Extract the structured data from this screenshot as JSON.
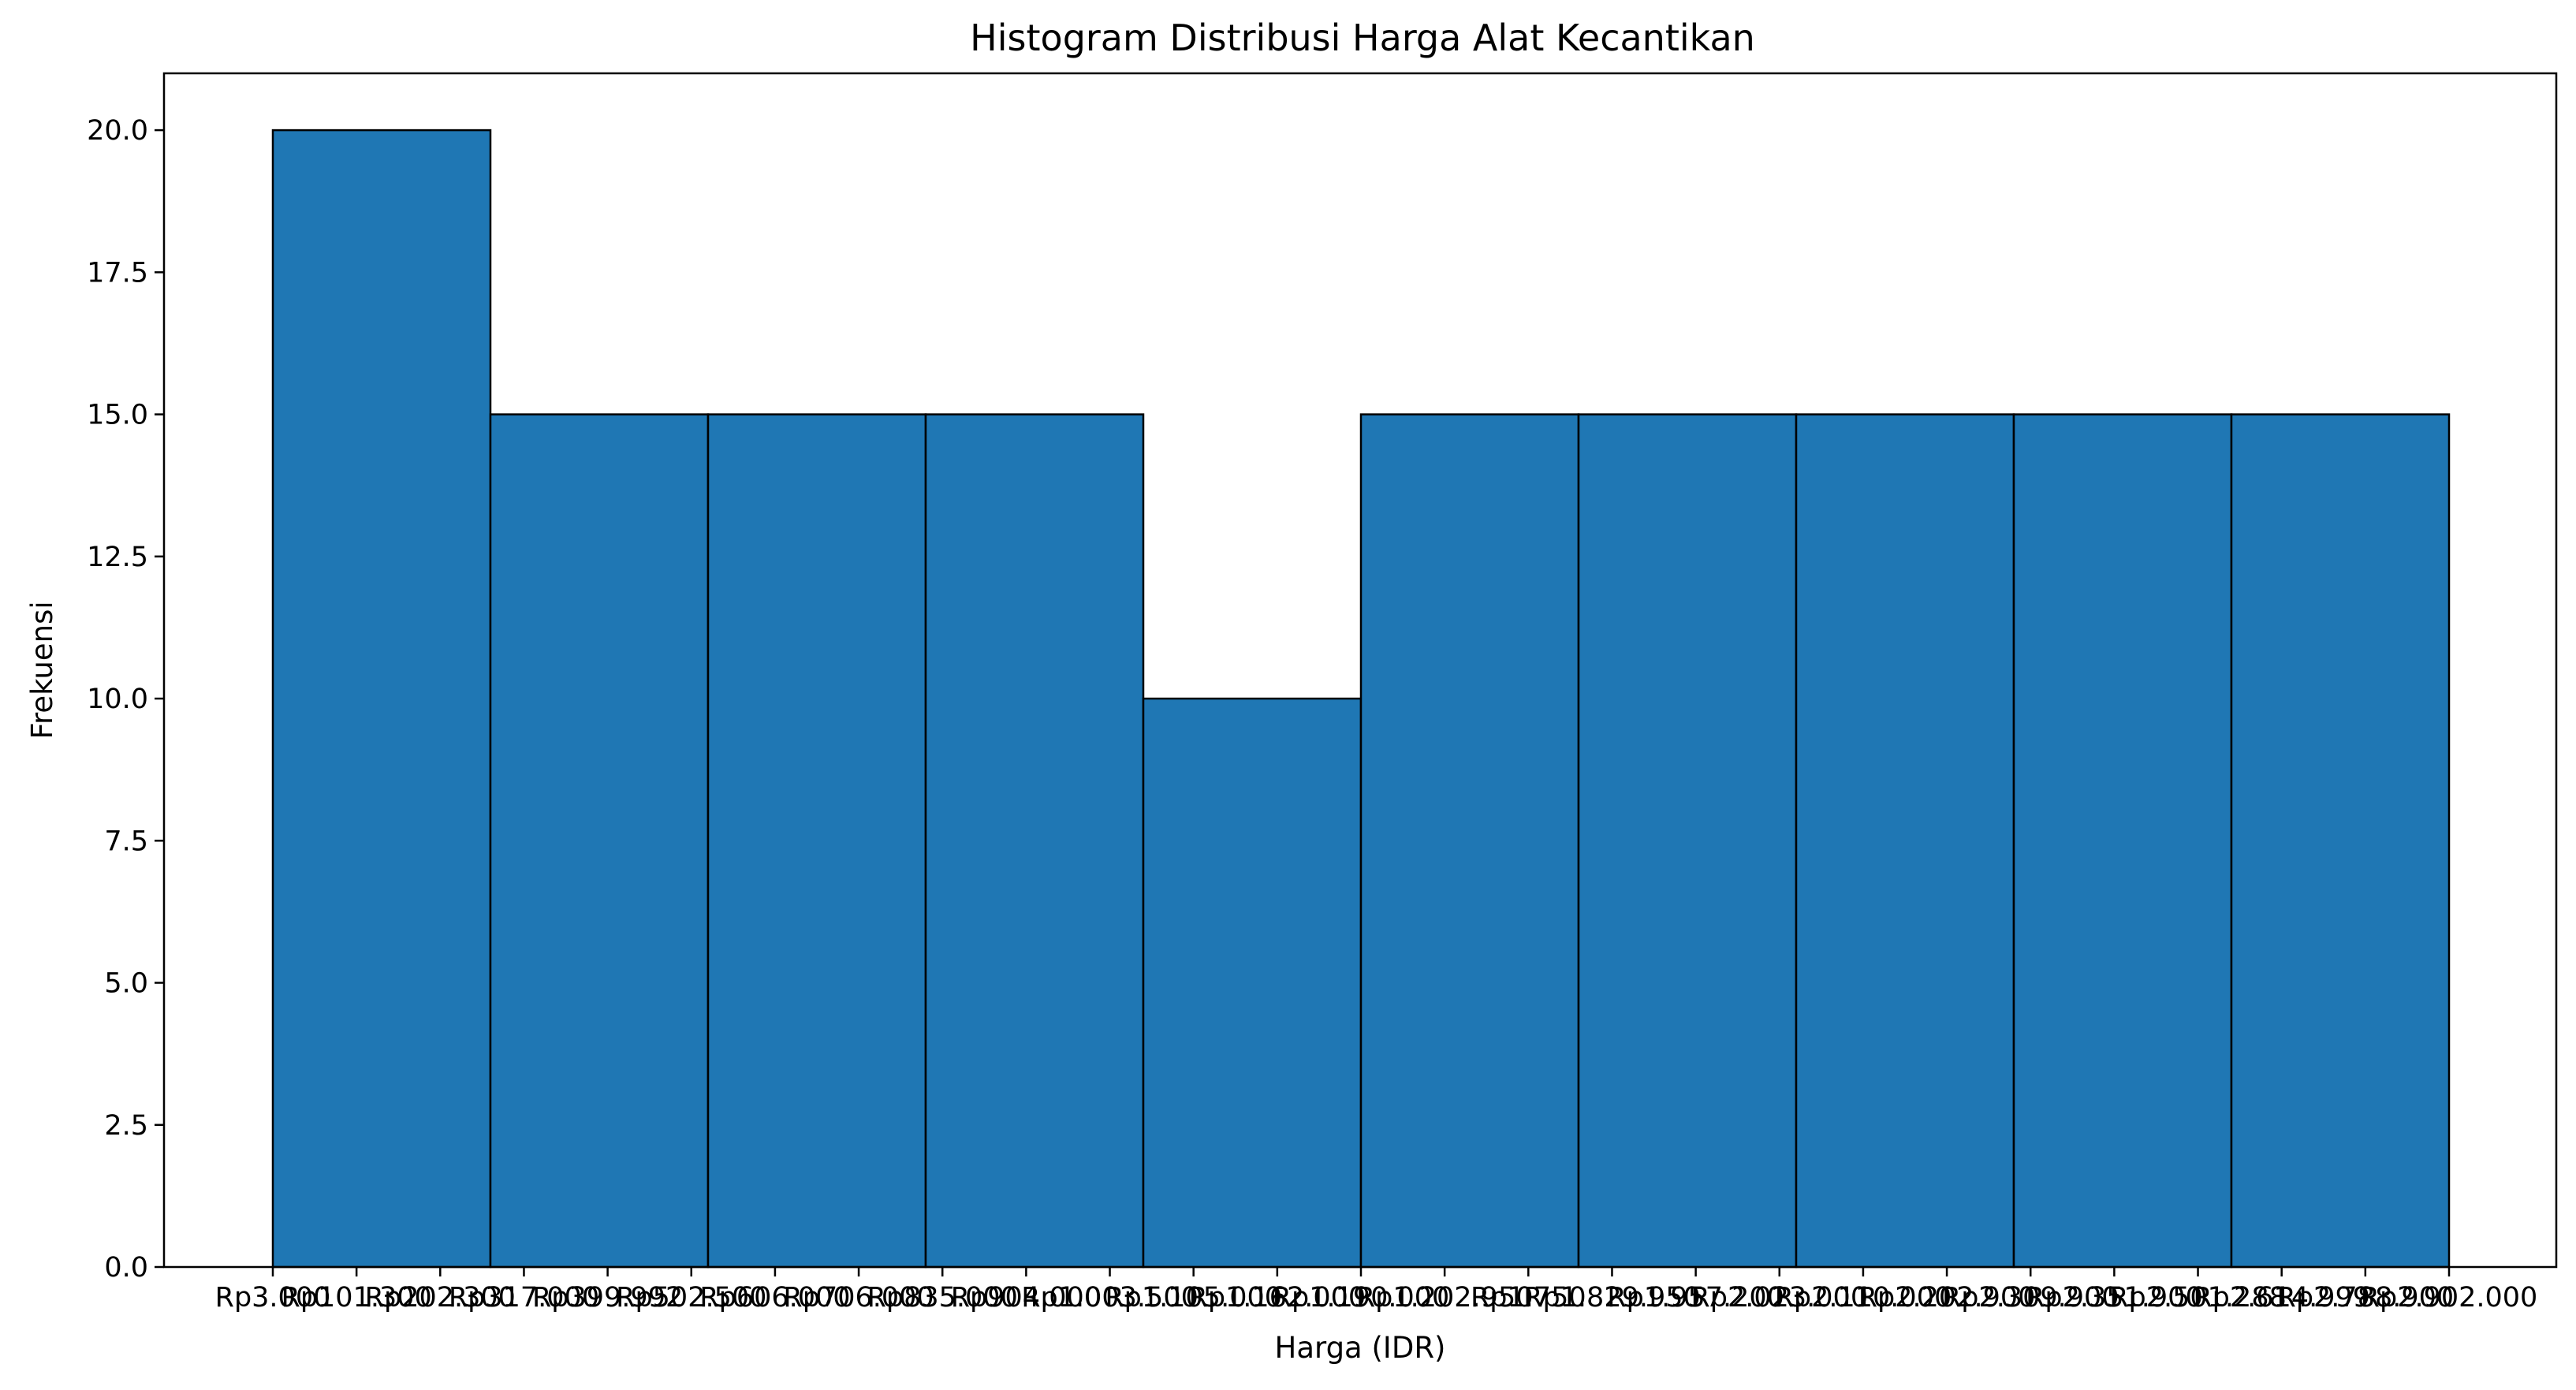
{
  "chart_data": {
    "type": "bar",
    "title": "Histogram Distribusi Harga Alat Kecantikan",
    "xlabel": "Harga (IDR)",
    "ylabel": "Frekuensi",
    "bin_values": [
      20,
      15,
      15,
      15,
      10,
      15,
      15,
      15,
      15,
      15
    ],
    "ylim": [
      0,
      21
    ],
    "yticks": [
      0.0,
      2.5,
      5.0,
      7.5,
      10.0,
      12.5,
      15.0,
      17.5,
      20.0
    ],
    "ytick_labels": [
      "0.0",
      "2.5",
      "5.0",
      "7.5",
      "10.0",
      "12.5",
      "15.0",
      "17.5",
      "20.0"
    ],
    "xtick_labels": [
      "Rp3.000",
      "Rp101.300",
      "Rp202.300",
      "Rp317.000",
      "Rp399.992",
      "Rp502.500",
      "Rp606.000",
      "Rp706.000",
      "Rp835.000",
      "Rp904.000",
      "Rp1.003.500",
      "Rp1.105.000",
      "Rp1.162.000",
      "Rp1.190.000",
      "Rp1.202.950",
      "Rp1.750",
      "Rp1.829.950",
      "Rp1.957.200",
      "Rp2.023.000",
      "Rp2.110.000",
      "Rp2.202.900",
      "Rp2.309.900",
      "Rp2.351.900",
      "Rp2.501.288",
      "Rp2.614.999",
      "Rp2.788.900",
      "Rp2.902.000"
    ],
    "bar_color": "#1f77b4",
    "edge_color": "#000000",
    "grid": false
  }
}
